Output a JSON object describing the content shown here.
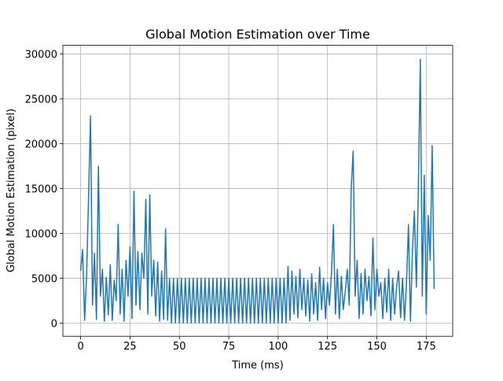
{
  "chart_data": {
    "type": "line",
    "title": "Global Motion Estimation over Time",
    "x_label": "Time (ms)",
    "y_label": "Global Motion Estimation (pixel)",
    "x": [
      0,
      1,
      2,
      3,
      4,
      5,
      6,
      7,
      8,
      9,
      10,
      11,
      12,
      13,
      14,
      15,
      16,
      17,
      18,
      19,
      20,
      21,
      22,
      23,
      24,
      25,
      26,
      27,
      28,
      29,
      30,
      31,
      32,
      33,
      34,
      35,
      36,
      37,
      38,
      39,
      40,
      41,
      42,
      43,
      44,
      45,
      46,
      47,
      48,
      49,
      50,
      51,
      52,
      53,
      54,
      55,
      56,
      57,
      58,
      59,
      60,
      61,
      62,
      63,
      64,
      65,
      66,
      67,
      68,
      69,
      70,
      71,
      72,
      73,
      74,
      75,
      76,
      77,
      78,
      79,
      80,
      81,
      82,
      83,
      84,
      85,
      86,
      87,
      88,
      89,
      90,
      91,
      92,
      93,
      94,
      95,
      96,
      97,
      98,
      99,
      100,
      101,
      102,
      103,
      104,
      105,
      106,
      107,
      108,
      109,
      110,
      111,
      112,
      113,
      114,
      115,
      116,
      117,
      118,
      119,
      120,
      121,
      122,
      123,
      124,
      125,
      126,
      127,
      128,
      129,
      130,
      131,
      132,
      133,
      134,
      135,
      136,
      137,
      138,
      139,
      140,
      141,
      142,
      143,
      144,
      145,
      146,
      147,
      148,
      149,
      150,
      151,
      152,
      153,
      154,
      155,
      156,
      157,
      158,
      159,
      160,
      161,
      162,
      163,
      164,
      165,
      166,
      167,
      168,
      169,
      170,
      171,
      172,
      173,
      174,
      175,
      176,
      177,
      178,
      179
    ],
    "values": [
      5800,
      8200,
      300,
      5200,
      14000,
      23100,
      2000,
      7800,
      400,
      17500,
      3000,
      6000,
      200,
      5100,
      900,
      6500,
      300,
      4800,
      2500,
      11000,
      1000,
      6000,
      200,
      7000,
      3000,
      8500,
      500,
      14700,
      2000,
      8000,
      1500,
      7800,
      5000,
      13800,
      1000,
      14300,
      3000,
      7000,
      800,
      6800,
      200,
      5800,
      400,
      10500,
      300,
      5000,
      0,
      5000,
      0,
      5000,
      0,
      5000,
      0,
      5000,
      0,
      5000,
      0,
      5000,
      0,
      5000,
      0,
      5000,
      0,
      5000,
      0,
      5000,
      0,
      5000,
      0,
      5000,
      0,
      5000,
      0,
      5000,
      0,
      5000,
      0,
      5000,
      0,
      5000,
      0,
      5000,
      0,
      5000,
      0,
      5000,
      0,
      5000,
      0,
      5000,
      0,
      5000,
      0,
      5000,
      0,
      5000,
      0,
      5000,
      0,
      5000,
      0,
      5000,
      0,
      5000,
      0,
      6300,
      300,
      5800,
      1000,
      5200,
      600,
      6000,
      1500,
      5000,
      800,
      4800,
      200,
      5500,
      1000,
      4500,
      300,
      6200,
      1500,
      5000,
      500,
      4500,
      2000,
      5500,
      11000,
      1000,
      6000,
      500,
      5200,
      1500,
      3500,
      6000,
      2000,
      15000,
      19200,
      3000,
      7000,
      500,
      5500,
      1000,
      6000,
      2500,
      5200,
      800,
      9500,
      1500,
      6000,
      3000,
      4500,
      500,
      5000,
      1200,
      6000,
      300,
      5000,
      1000,
      4000,
      5800,
      600,
      5000,
      300,
      4500,
      11000,
      200,
      8000,
      12500,
      4000,
      15000,
      29400,
      3000,
      16500,
      1000,
      12000,
      7000,
      19800,
      3800
    ],
    "color": "#1f77b4",
    "xlim": [
      -9,
      188.4
    ],
    "ylim": [
      -1475,
      30975
    ],
    "xticks": [
      0,
      25,
      50,
      75,
      100,
      125,
      150,
      175
    ],
    "yticks": [
      0,
      5000,
      10000,
      15000,
      20000,
      25000,
      30000
    ],
    "grid": true
  }
}
